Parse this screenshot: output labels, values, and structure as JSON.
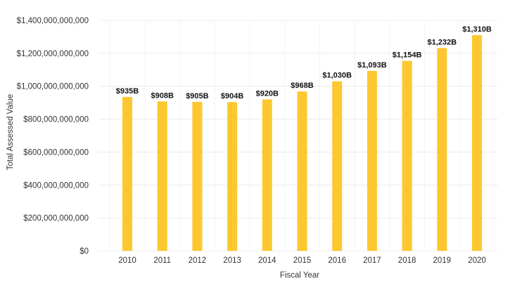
{
  "chart_data": {
    "type": "bar",
    "title": "",
    "xlabel": "Fiscal Year",
    "ylabel": "Total Assessed Value",
    "ylim": [
      0,
      1400000000000
    ],
    "y_ticks": [
      0,
      200000000000,
      400000000000,
      600000000000,
      800000000000,
      1000000000000,
      1200000000000,
      1400000000000
    ],
    "y_tick_labels": [
      "$0",
      "$200,000,000,000",
      "$400,000,000,000",
      "$600,000,000,000",
      "$800,000,000,000",
      "$1,000,000,000,000",
      "$1,200,000,000,000",
      "$1,400,000,000,000"
    ],
    "categories": [
      "2010",
      "2011",
      "2012",
      "2013",
      "2014",
      "2015",
      "2016",
      "2017",
      "2018",
      "2019",
      "2020"
    ],
    "values": [
      935000000000,
      908000000000,
      905000000000,
      904000000000,
      920000000000,
      968000000000,
      1030000000000,
      1093000000000,
      1154000000000,
      1232000000000,
      1310000000000
    ],
    "data_labels": [
      "$935B",
      "$908B",
      "$905B",
      "$904B",
      "$920B",
      "$968B",
      "$1,030B",
      "$1,093B",
      "$1,154B",
      "$1,232B",
      "$1,310B"
    ],
    "bar_color": "#FDC82F",
    "grid": true,
    "legend": "none"
  }
}
